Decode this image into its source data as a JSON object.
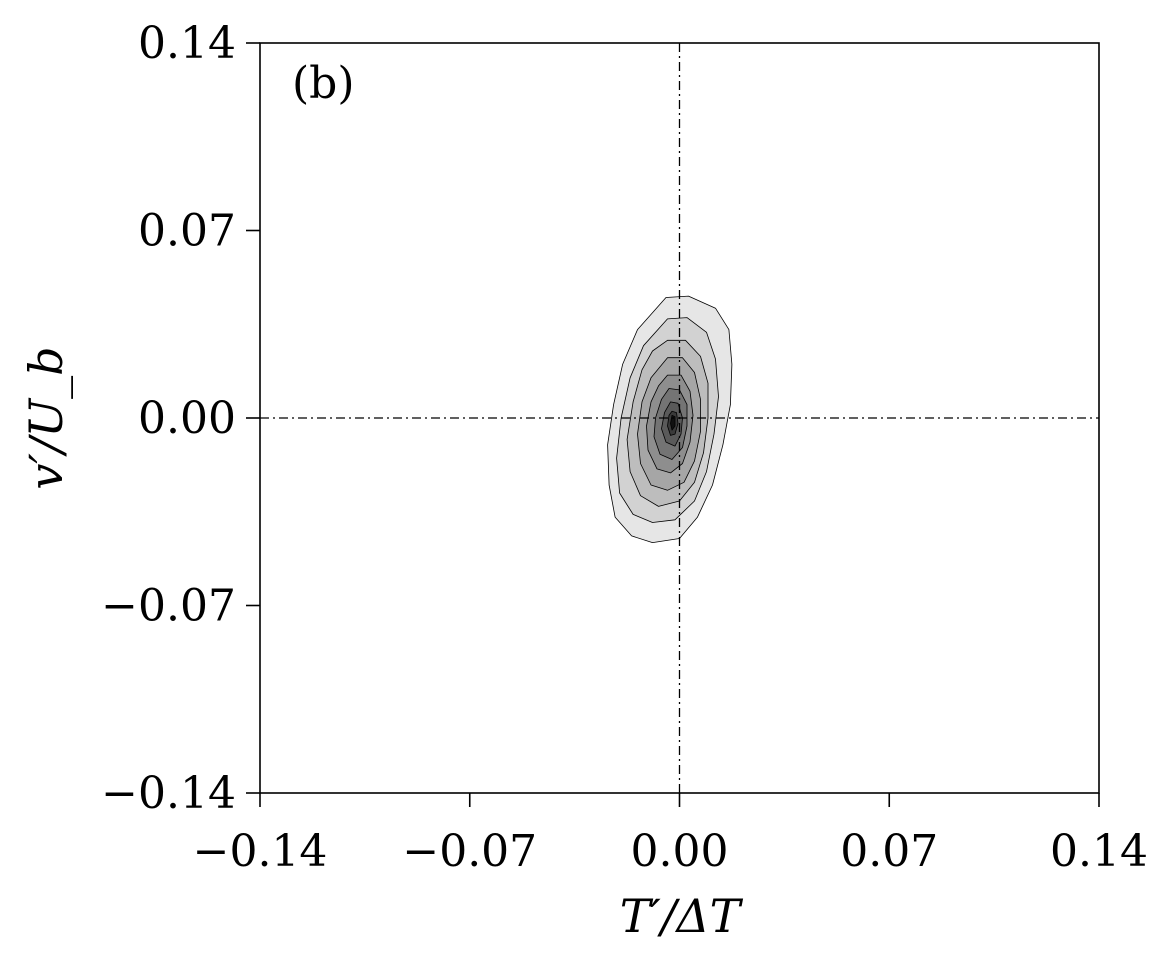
{
  "chart_data": {
    "type": "contour",
    "panel_label": "(b)",
    "xlabel": "T′/ΔT",
    "ylabel": "v′/U_b",
    "xlim": [
      -0.14,
      0.14
    ],
    "ylim": [
      -0.14,
      0.14
    ],
    "xticks": [
      -0.14,
      -0.07,
      0.0,
      0.07,
      0.14
    ],
    "yticks": [
      -0.14,
      -0.07,
      0.0,
      0.07,
      0.14
    ],
    "xtick_labels": [
      "−0.14",
      "−0.07",
      "0.00",
      "0.07",
      "0.14"
    ],
    "ytick_labels": [
      "−0.14",
      "−0.07",
      "0.00",
      "0.07",
      "0.14"
    ],
    "reference_lines": {
      "x": 0.0,
      "y": 0.0,
      "style": "dash-dot"
    },
    "grid": false,
    "contours": [
      {
        "level": 1,
        "fill": "#e6e6e6",
        "points": [
          [
            -0.0045,
            0.045
          ],
          [
            0.003,
            0.0455
          ],
          [
            0.012,
            0.041
          ],
          [
            0.0165,
            0.033
          ],
          [
            0.0175,
            0.02
          ],
          [
            0.017,
            0.005
          ],
          [
            0.0145,
            -0.01
          ],
          [
            0.011,
            -0.025
          ],
          [
            0.006,
            -0.037
          ],
          [
            0.0,
            -0.045
          ],
          [
            -0.009,
            -0.0465
          ],
          [
            -0.016,
            -0.044
          ],
          [
            -0.0215,
            -0.037
          ],
          [
            -0.0235,
            -0.025
          ],
          [
            -0.024,
            -0.01
          ],
          [
            -0.022,
            0.005
          ],
          [
            -0.019,
            0.02
          ],
          [
            -0.014,
            0.033
          ]
        ]
      },
      {
        "level": 2,
        "fill": "#d2d2d2",
        "points": [
          [
            -0.004,
            0.037
          ],
          [
            0.0025,
            0.0375
          ],
          [
            0.009,
            0.032
          ],
          [
            0.012,
            0.022
          ],
          [
            0.013,
            0.008
          ],
          [
            0.0115,
            -0.006
          ],
          [
            0.009,
            -0.02
          ],
          [
            0.005,
            -0.031
          ],
          [
            -0.0015,
            -0.038
          ],
          [
            -0.009,
            -0.039
          ],
          [
            -0.0155,
            -0.036
          ],
          [
            -0.02,
            -0.028
          ],
          [
            -0.021,
            -0.015
          ],
          [
            -0.0195,
            0.0
          ],
          [
            -0.0165,
            0.015
          ],
          [
            -0.012,
            0.027
          ]
        ]
      },
      {
        "level": 3,
        "fill": "#bdbdbd",
        "points": [
          [
            -0.004,
            0.029
          ],
          [
            0.002,
            0.029
          ],
          [
            0.007,
            0.023
          ],
          [
            0.0095,
            0.013
          ],
          [
            0.0095,
            0.0
          ],
          [
            0.008,
            -0.013
          ],
          [
            0.005,
            -0.024
          ],
          [
            0.0,
            -0.031
          ],
          [
            -0.007,
            -0.033
          ],
          [
            -0.013,
            -0.029
          ],
          [
            -0.0165,
            -0.02
          ],
          [
            -0.0175,
            -0.008
          ],
          [
            -0.0155,
            0.006
          ],
          [
            -0.0125,
            0.018
          ],
          [
            -0.009,
            0.025
          ]
        ]
      },
      {
        "level": 4,
        "fill": "#a6a6a6",
        "points": [
          [
            -0.004,
            0.0225
          ],
          [
            0.001,
            0.0225
          ],
          [
            0.005,
            0.017
          ],
          [
            0.007,
            0.007
          ],
          [
            0.007,
            -0.005
          ],
          [
            0.005,
            -0.016
          ],
          [
            0.0015,
            -0.024
          ],
          [
            -0.004,
            -0.027
          ],
          [
            -0.0095,
            -0.025
          ],
          [
            -0.013,
            -0.017
          ],
          [
            -0.014,
            -0.006
          ],
          [
            -0.0125,
            0.006
          ],
          [
            -0.0095,
            0.015
          ]
        ]
      },
      {
        "level": 5,
        "fill": "#8e8e8e",
        "points": [
          [
            -0.004,
            0.016
          ],
          [
            0.0005,
            0.016
          ],
          [
            0.0035,
            0.01
          ],
          [
            0.0045,
            0.001
          ],
          [
            0.0035,
            -0.009
          ],
          [
            0.001,
            -0.017
          ],
          [
            -0.003,
            -0.0205
          ],
          [
            -0.0075,
            -0.019
          ],
          [
            -0.0105,
            -0.012
          ],
          [
            -0.011,
            -0.003
          ],
          [
            -0.0095,
            0.006
          ],
          [
            -0.007,
            0.012
          ]
        ]
      },
      {
        "level": 6,
        "fill": "#747474",
        "points": [
          [
            -0.0035,
            0.011
          ],
          [
            0.0,
            0.0105
          ],
          [
            0.0025,
            0.005
          ],
          [
            0.0025,
            -0.003
          ],
          [
            0.001,
            -0.011
          ],
          [
            -0.0025,
            -0.0155
          ],
          [
            -0.0065,
            -0.0135
          ],
          [
            -0.0085,
            -0.007
          ],
          [
            -0.008,
            0.0
          ],
          [
            -0.006,
            0.007
          ]
        ]
      },
      {
        "level": 7,
        "fill": "#5a5a5a",
        "points": [
          [
            -0.003,
            0.006
          ],
          [
            -0.0005,
            0.0055
          ],
          [
            0.001,
            0.0
          ],
          [
            0.0005,
            -0.006
          ],
          [
            -0.0015,
            -0.0105
          ],
          [
            -0.0045,
            -0.009
          ],
          [
            -0.006,
            -0.004
          ],
          [
            -0.005,
            0.002
          ]
        ]
      },
      {
        "level": 8,
        "fill": "#3a3a3a",
        "points": [
          [
            -0.0025,
            0.0025
          ],
          [
            -0.001,
            0.002
          ],
          [
            -0.0005,
            -0.002
          ],
          [
            -0.0015,
            -0.006
          ],
          [
            -0.003,
            -0.0065
          ],
          [
            -0.004,
            -0.003
          ],
          [
            -0.0035,
            0.001
          ]
        ]
      },
      {
        "level": 9,
        "fill": "#111111",
        "points": [
          [
            -0.0025,
            0.001
          ],
          [
            -0.0015,
            0.0005
          ],
          [
            -0.0015,
            -0.003
          ],
          [
            -0.0025,
            -0.0045
          ],
          [
            -0.003,
            -0.002
          ]
        ]
      }
    ]
  }
}
